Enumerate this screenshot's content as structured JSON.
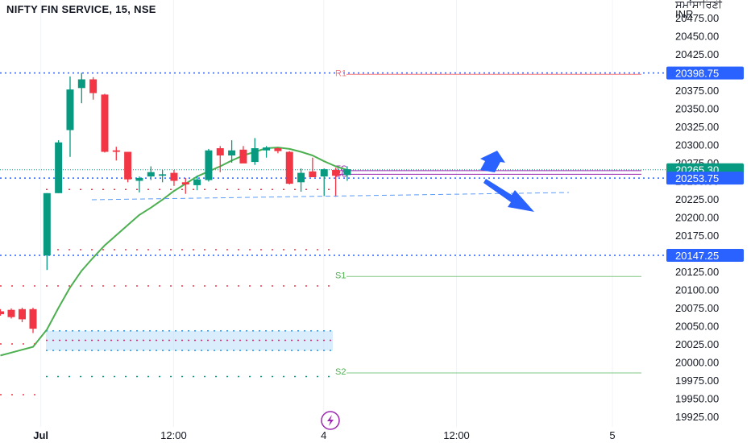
{
  "header": {
    "title": "NIFTY FIN SERVICE, 15, NSE",
    "corner_text": "ਸਮਾਂਸਾਰਿਣੀ",
    "currency": "INR"
  },
  "colors": {
    "up": "#089981",
    "down": "#f23645",
    "ma": "#4caf50",
    "pivot_blue": "#2962ff",
    "r1": "#f77c80",
    "s_line": "#81c784",
    "tc_bc": "#9c27b0",
    "trend": "#5b9cf6",
    "arrow": "#2962ff"
  },
  "chart_data": {
    "type": "candlestick",
    "title": "NIFTY FIN SERVICE, 15, NSE",
    "ylim": [
      19915,
      20495
    ],
    "y_ticks": [
      19925,
      19950,
      19975,
      20000,
      20025,
      20050,
      20075,
      20100,
      20125,
      20150,
      20175,
      20200,
      20225,
      20250,
      20275,
      20300,
      20325,
      20350,
      20375,
      20400,
      20425,
      20450,
      20475
    ],
    "y_tick_labels": [
      "19925.00",
      "19950.00",
      "19975.00",
      "20000.00",
      "20025.00",
      "20050.00",
      "20075.00",
      "20100.00",
      "20125.00",
      "20150.00",
      "20175.00",
      "20200.00",
      "20225.00",
      "20250.00",
      "20275.00",
      "20300.00",
      "20325.00",
      "20350.00",
      "20375.00",
      "20400.00",
      "20425.00",
      "20450.00",
      "20475.00"
    ],
    "x_labels": [
      {
        "label": "Jul",
        "bar": 3.5,
        "bold": true
      },
      {
        "label": "12:00",
        "bar": 15
      },
      {
        "label": "4",
        "bar": 28
      },
      {
        "label": "12:00",
        "bar": 39.5
      },
      {
        "label": "5",
        "bar": 53
      }
    ],
    "candles": [
      {
        "o": 20070,
        "h": 20073,
        "l": 20064,
        "c": 20066
      },
      {
        "o": 20072,
        "h": 20074,
        "l": 20060,
        "c": 20062
      },
      {
        "o": 20073,
        "h": 20075,
        "l": 20055,
        "c": 20059
      },
      {
        "o": 20073,
        "h": 20075,
        "l": 20040,
        "c": 20046
      },
      {
        "o": 20147,
        "h": 20233,
        "l": 20127,
        "c": 20233
      },
      {
        "o": 20233,
        "h": 20306,
        "l": 20233,
        "c": 20303
      },
      {
        "o": 20320,
        "h": 20394,
        "l": 20283,
        "c": 20376
      },
      {
        "o": 20378,
        "h": 20399,
        "l": 20357,
        "c": 20390
      },
      {
        "o": 20390,
        "h": 20393,
        "l": 20362,
        "c": 20371
      },
      {
        "o": 20369,
        "h": 20370,
        "l": 20289,
        "c": 20290
      },
      {
        "o": 20292,
        "h": 20297,
        "l": 20278,
        "c": 20290
      },
      {
        "o": 20290,
        "h": 20290,
        "l": 20248,
        "c": 20252
      },
      {
        "o": 20250,
        "h": 20256,
        "l": 20234,
        "c": 20254
      },
      {
        "o": 20256,
        "h": 20270,
        "l": 20251,
        "c": 20262
      },
      {
        "o": 20257,
        "h": 20265,
        "l": 20248,
        "c": 20259
      },
      {
        "o": 20261,
        "h": 20265,
        "l": 20243,
        "c": 20250
      },
      {
        "o": 20248,
        "h": 20254,
        "l": 20232,
        "c": 20245
      },
      {
        "o": 20244,
        "h": 20257,
        "l": 20237,
        "c": 20252
      },
      {
        "o": 20251,
        "h": 20294,
        "l": 20249,
        "c": 20292
      },
      {
        "o": 20295,
        "h": 20298,
        "l": 20262,
        "c": 20285
      },
      {
        "o": 20285,
        "h": 20306,
        "l": 20275,
        "c": 20292
      },
      {
        "o": 20293,
        "h": 20298,
        "l": 20278,
        "c": 20274
      },
      {
        "o": 20276,
        "h": 20309,
        "l": 20272,
        "c": 20295
      },
      {
        "o": 20292,
        "h": 20298,
        "l": 20282,
        "c": 20296
      },
      {
        "o": 20295,
        "h": 20296,
        "l": 20288,
        "c": 20291
      },
      {
        "o": 20290,
        "h": 20291,
        "l": 20245,
        "c": 20246
      },
      {
        "o": 20248,
        "h": 20267,
        "l": 20235,
        "c": 20261
      },
      {
        "o": 20263,
        "h": 20282,
        "l": 20255,
        "c": 20255
      },
      {
        "o": 20256,
        "h": 20267,
        "l": 20229,
        "c": 20266
      },
      {
        "o": 20265,
        "h": 20268,
        "l": 20228,
        "c": 20257
      },
      {
        "o": 20258,
        "h": 20270,
        "l": 20250,
        "c": 20266
      }
    ],
    "ma": [
      20009,
      20013,
      20017,
      20021,
      20045,
      20075,
      20103,
      20126,
      20144,
      20161,
      20175,
      20189,
      20203,
      20213,
      20224,
      20236,
      20246,
      20256,
      20263,
      20270,
      20278,
      20285,
      20290,
      20295,
      20296,
      20294,
      20290,
      20285,
      20277,
      20270,
      20265
    ],
    "levels": {
      "price_badges": [
        {
          "label": "20398.75",
          "value": 20398.75
        },
        {
          "label": "20265.30",
          "value": 20265.3,
          "current": true
        },
        {
          "label": "20253.75",
          "value": 20253.75
        },
        {
          "label": "20147.25",
          "value": 20147.25
        }
      ],
      "pivot_labels": [
        {
          "label": "R1",
          "value": 20398.75
        },
        {
          "label": "TC",
          "value": 20267
        },
        {
          "label": "BC",
          "value": 20260
        },
        {
          "label": "S1",
          "value": 20120
        },
        {
          "label": "S2",
          "value": 19987
        }
      ]
    }
  }
}
